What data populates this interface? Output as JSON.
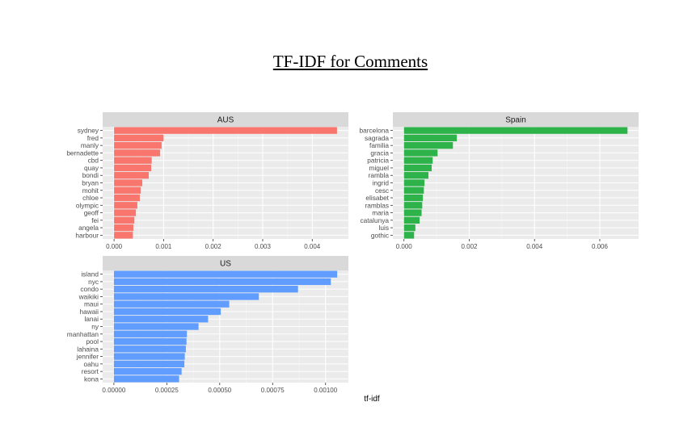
{
  "page": {
    "title": "TF-IDF for Comments",
    "xlabel": "tf-idf"
  },
  "chart_data": [
    {
      "type": "bar",
      "orientation": "horizontal",
      "facet": "AUS",
      "color": "#F8766D",
      "categories": [
        "sydney",
        "fred",
        "manly",
        "bernadette",
        "cbd",
        "quay",
        "bondi",
        "bryan",
        "mohit",
        "chloe",
        "olympic",
        "geoff",
        "fei",
        "angela",
        "harbour"
      ],
      "values": [
        0.0045,
        0.001,
        0.00096,
        0.00093,
        0.00076,
        0.00075,
        0.0007,
        0.00057,
        0.00054,
        0.00052,
        0.00047,
        0.00044,
        0.00041,
        0.00039,
        0.00038
      ],
      "xticks": [
        "0.000",
        "0.001",
        "0.002",
        "0.003",
        "0.004"
      ],
      "xtick_values": [
        0,
        0.001,
        0.002,
        0.003,
        0.004
      ],
      "xlim": [
        -0.00023,
        0.00473
      ],
      "xlabel": "tf-idf",
      "grid": true
    },
    {
      "type": "bar",
      "orientation": "horizontal",
      "facet": "Spain",
      "color": "#2EB34A",
      "categories": [
        "barcelona",
        "sagrada",
        "familia",
        "gracia",
        "patricia",
        "miguel",
        "rambla",
        "ingrid",
        "cesc",
        "elisabet",
        "ramblas",
        "maria",
        "catalunya",
        "luis",
        "gothic"
      ],
      "values": [
        0.00685,
        0.00162,
        0.0015,
        0.00103,
        0.00088,
        0.00085,
        0.00075,
        0.00063,
        0.00061,
        0.00058,
        0.00056,
        0.00054,
        0.00048,
        0.00035,
        0.00031
      ],
      "xticks": [
        "0.000",
        "0.002",
        "0.004",
        "0.006"
      ],
      "xtick_values": [
        0,
        0.002,
        0.004,
        0.006
      ],
      "xlim": [
        -0.00034,
        0.00719
      ],
      "xlabel": "tf-idf",
      "grid": true
    },
    {
      "type": "bar",
      "orientation": "horizontal",
      "facet": "US",
      "color": "#619CFF",
      "categories": [
        "island",
        "nyc",
        "condo",
        "waikiki",
        "maui",
        "hawaii",
        "lanai",
        "ny",
        "manhattan",
        "pool",
        "lahaina",
        "jennifer",
        "oahu",
        "resort",
        "kona"
      ],
      "values": [
        0.001055,
        0.001025,
        0.00087,
        0.000685,
        0.000545,
        0.000505,
        0.000445,
        0.0004,
        0.000345,
        0.000343,
        0.00034,
        0.000335,
        0.000333,
        0.00032,
        0.000308
      ],
      "xticks": [
        "0.00000",
        "0.00025",
        "0.00050",
        "0.00075",
        "0.00100"
      ],
      "xtick_values": [
        0,
        0.00025,
        0.0005,
        0.00075,
        0.001
      ],
      "xlim": [
        -5.3e-05,
        0.001108
      ],
      "xlabel": "tf-idf",
      "grid": true
    }
  ]
}
